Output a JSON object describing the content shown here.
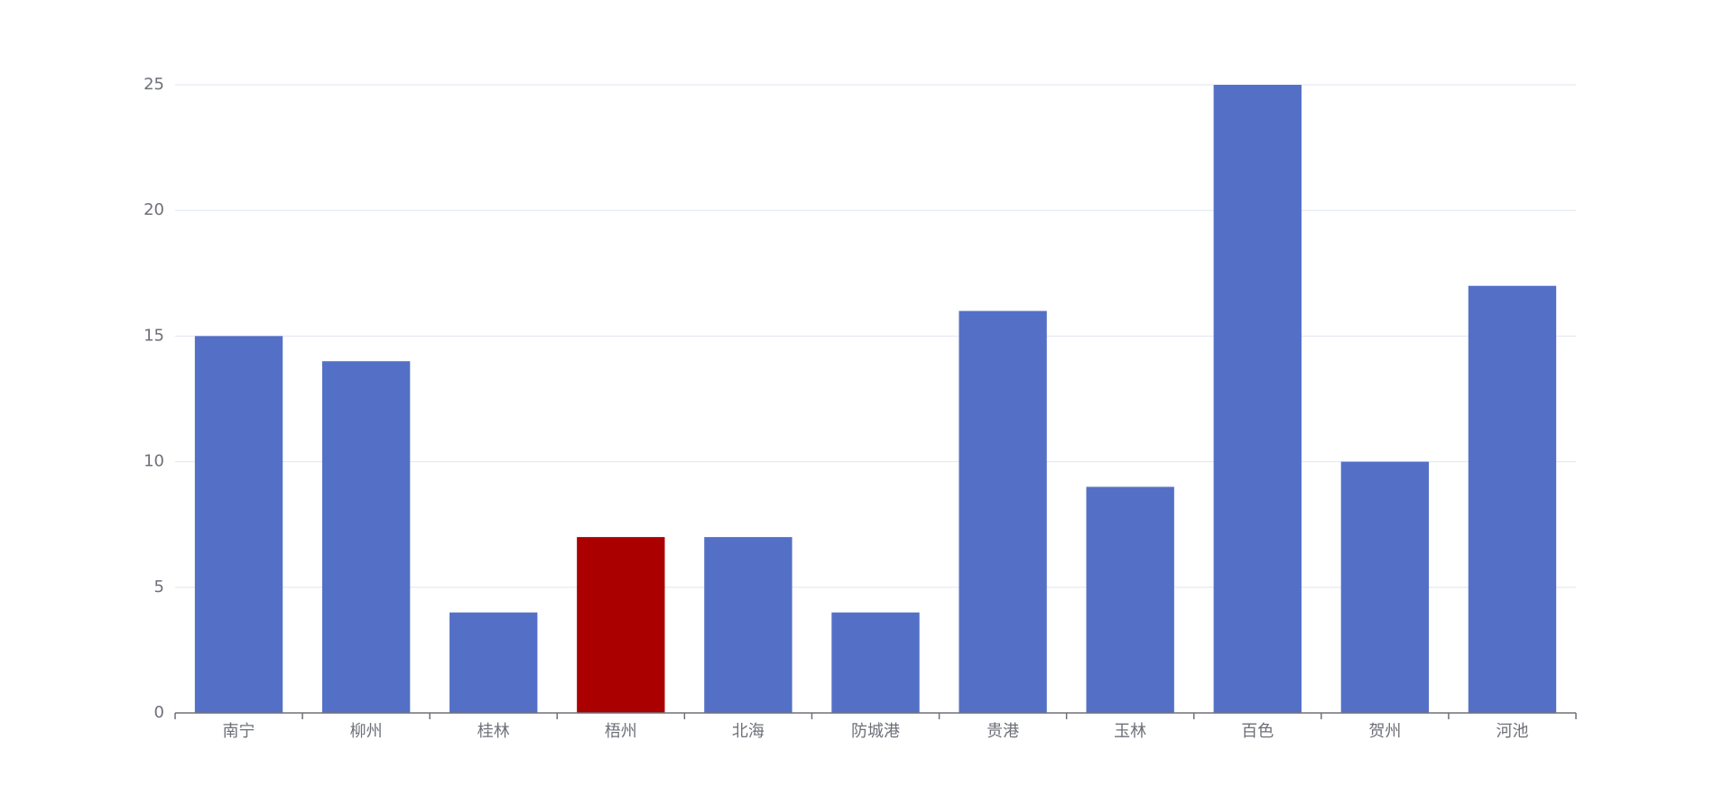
{
  "chart_data": {
    "type": "bar",
    "categories": [
      "南宁",
      "柳州",
      "桂林",
      "梧州",
      "北海",
      "防城港",
      "贵港",
      "玉林",
      "百色",
      "贺州",
      "河池"
    ],
    "values": [
      15,
      14,
      4,
      7,
      7,
      4,
      16,
      9,
      25,
      10,
      17
    ],
    "colors": [
      "#5470c6",
      "#5470c6",
      "#5470c6",
      "#aa0000",
      "#5470c6",
      "#5470c6",
      "#5470c6",
      "#5470c6",
      "#5470c6",
      "#5470c6",
      "#5470c6"
    ],
    "ylim": [
      0,
      25
    ],
    "yticks": [
      0,
      5,
      10,
      15,
      20,
      25
    ],
    "grid": true
  }
}
